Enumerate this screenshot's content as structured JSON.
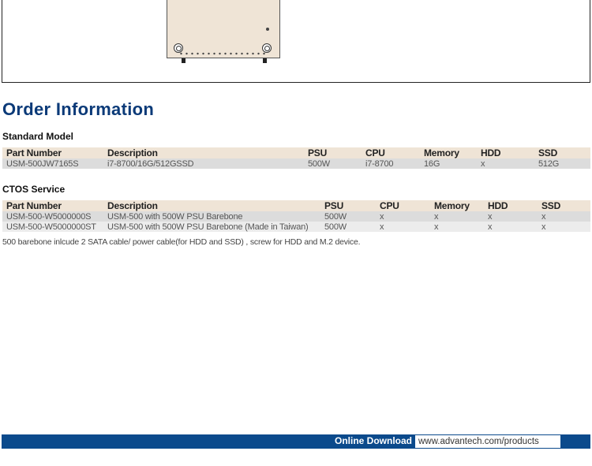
{
  "title": "Order Information",
  "standard": {
    "label": "Standard Model",
    "headers": [
      "Part Number",
      "Description",
      "PSU",
      "CPU",
      "Memory",
      "HDD",
      "SSD"
    ],
    "rows": [
      [
        "USM-500JW7165S",
        "i7-8700/16G/512GSSD",
        "500W",
        "i7-8700",
        "16G",
        "x",
        "512G"
      ]
    ]
  },
  "ctos": {
    "label": "CTOS Service",
    "headers": [
      "Part Number",
      "Description",
      "PSU",
      "CPU",
      "Memory",
      "HDD",
      "SSD"
    ],
    "rows": [
      [
        "USM-500-W5000000S",
        "USM-500 with 500W PSU Barebone",
        "500W",
        "x",
        "x",
        "x",
        "x"
      ],
      [
        "USM-500-W5000000ST",
        "USM-500 with 500W PSU Barebone (Made in Taiwan)",
        "500W",
        "x",
        "x",
        "x",
        "x"
      ]
    ]
  },
  "note": "500 barebone inlcude 2 SATA cable/ power cable(for HDD and SSD) , screw for HDD and M.2 device.",
  "footer": {
    "label": "Online Download",
    "url": "www.advantech.com/products"
  },
  "colors": {
    "accent": "#0b3a78",
    "footer": "#0b4a8c",
    "header_row": "#efe4d6"
  }
}
